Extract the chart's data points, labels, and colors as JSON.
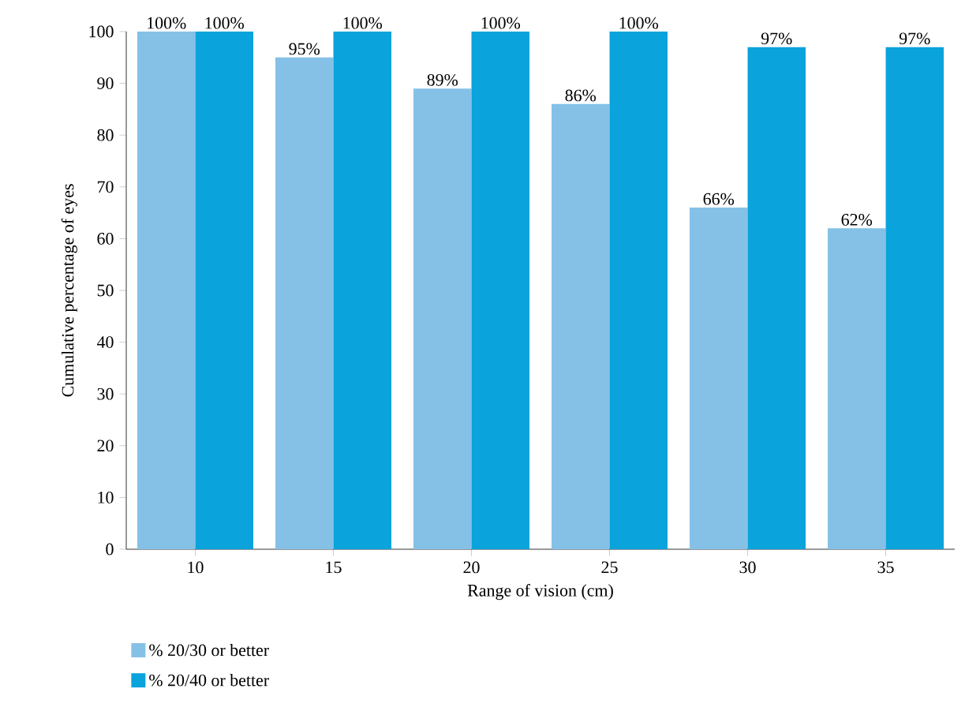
{
  "chart_data": {
    "type": "bar",
    "xlabel": "Range of vision (cm)",
    "ylabel": "Cumulative percentage of eyes",
    "categories": [
      "10",
      "15",
      "20",
      "25",
      "30",
      "35"
    ],
    "series": [
      {
        "name": "% 20/30 or better",
        "color": "#85c1e6",
        "values": [
          100,
          95,
          89,
          86,
          66,
          62
        ],
        "value_labels": [
          "100%",
          "95%",
          "89%",
          "86%",
          "66%",
          "62%"
        ]
      },
      {
        "name": "% 20/40 or better",
        "color": "#0aa3dc",
        "values": [
          100,
          100,
          100,
          100,
          97,
          97
        ],
        "value_labels": [
          "100%",
          "100%",
          "100%",
          "100%",
          "97%",
          "97%"
        ]
      }
    ],
    "ylim": [
      0,
      100
    ],
    "yticks": [
      0,
      10,
      20,
      30,
      40,
      50,
      60,
      70,
      80,
      90,
      100
    ],
    "legend": "bottom",
    "grid": false
  }
}
